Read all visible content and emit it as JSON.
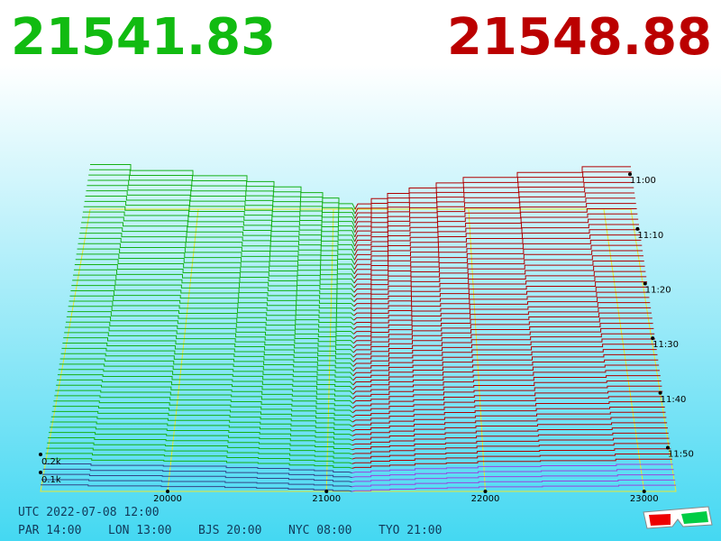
{
  "prices": {
    "bid": "21541.83",
    "ask": "21548.88"
  },
  "price_axis": [
    "20000",
    "21000",
    "22000",
    "23000"
  ],
  "time_axis": [
    "11:00",
    "11:10",
    "11:20",
    "11:30",
    "11:40",
    "11:50"
  ],
  "depth_axis": [
    "0.2k",
    "0.1k"
  ],
  "footer": {
    "utc": "UTC 2022-07-08 12:00",
    "zones": [
      "PAR 14:00",
      "LON 13:00",
      "BJS 20:00",
      "NYC 08:00",
      "TYO 21:00"
    ]
  }
}
